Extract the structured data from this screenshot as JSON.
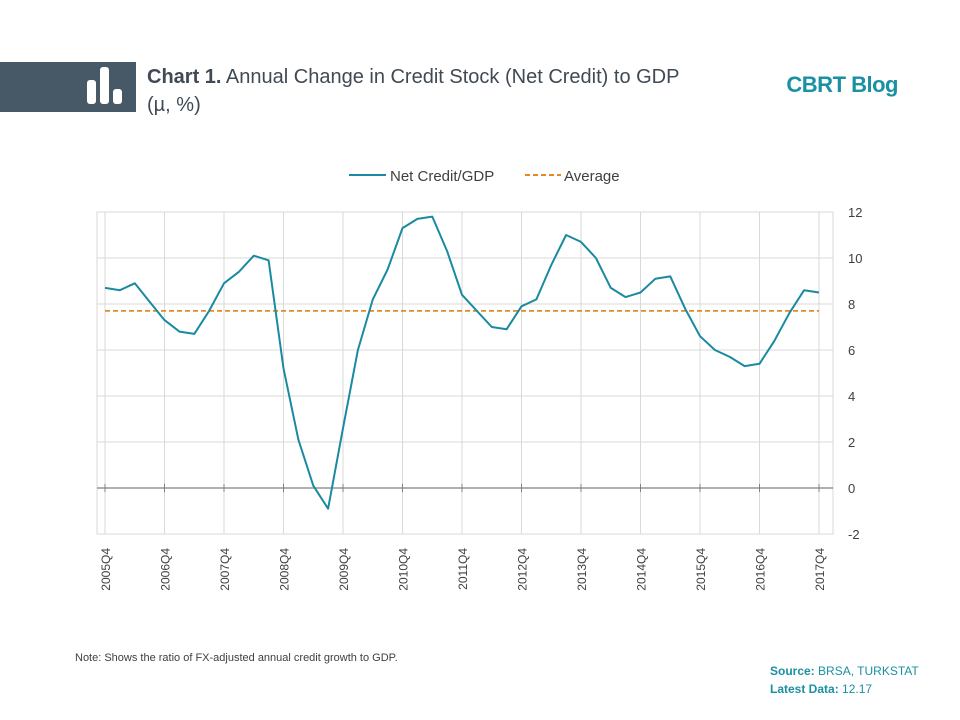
{
  "header": {
    "title_lead": "Chart 1.",
    "title_rest": " Annual Change in Credit Stock (Net Credit) to GDP (µ, %)",
    "brand": "CBRT Blog"
  },
  "footer": {
    "note": "Note: Shows the ratio of FX-adjusted annual credit growth to GDP.",
    "source_label": "Source:",
    "source_value": " BRSA, TURKSTAT",
    "latest_label": "Latest Data:",
    "latest_value": " 12.17"
  },
  "colors": {
    "line": "#1a8aa1",
    "average": "#e08b26",
    "grid": "#d9d9d9",
    "icon_bg": "#475867",
    "accent": "#1a90a3"
  },
  "chart_data": {
    "type": "line",
    "title": "",
    "xlabel": "",
    "ylabel": "",
    "ylim": [
      -2,
      12
    ],
    "yticks": [
      -2,
      0,
      2,
      4,
      6,
      8,
      10,
      12
    ],
    "y_axis_position": "right",
    "grid": true,
    "legend_position": "top-center",
    "categories": [
      "2005Q4",
      "2006Q1",
      "2006Q2",
      "2006Q3",
      "2006Q4",
      "2007Q1",
      "2007Q2",
      "2007Q3",
      "2007Q4",
      "2008Q1",
      "2008Q2",
      "2008Q3",
      "2008Q4",
      "2009Q1",
      "2009Q2",
      "2009Q3",
      "2009Q4",
      "2010Q1",
      "2010Q2",
      "2010Q3",
      "2010Q4",
      "2011Q1",
      "2011Q2",
      "2011Q3",
      "2011Q4",
      "2012Q1",
      "2012Q2",
      "2012Q3",
      "2012Q4",
      "2013Q1",
      "2013Q2",
      "2013Q3",
      "2013Q4",
      "2014Q1",
      "2014Q2",
      "2014Q3",
      "2014Q4",
      "2015Q1",
      "2015Q2",
      "2015Q3",
      "2015Q4",
      "2016Q1",
      "2016Q2",
      "2016Q3",
      "2016Q4",
      "2017Q1",
      "2017Q2",
      "2017Q3",
      "2017Q4"
    ],
    "tick_labels": [
      "2005Q4",
      "2006Q4",
      "2007Q4",
      "2008Q4",
      "2009Q4",
      "2010Q4",
      "2011Q4",
      "2012Q4",
      "2013Q4",
      "2014Q4",
      "2015Q4",
      "2016Q4",
      "2017Q4"
    ],
    "series": [
      {
        "name": "Net Credit/GDP",
        "style": "solid",
        "values": [
          8.7,
          8.6,
          8.9,
          8.1,
          7.3,
          6.8,
          6.7,
          7.7,
          8.9,
          9.4,
          10.1,
          9.9,
          5.2,
          2.1,
          0.1,
          -0.9,
          2.6,
          6.0,
          8.2,
          9.5,
          11.3,
          11.7,
          11.8,
          10.3,
          8.4,
          7.7,
          7.0,
          6.9,
          7.9,
          8.2,
          9.7,
          11.0,
          10.7,
          10.0,
          8.7,
          8.3,
          8.5,
          9.1,
          9.2,
          7.8,
          6.6,
          6.0,
          5.7,
          5.3,
          5.4,
          6.4,
          7.6,
          8.6,
          8.5
        ]
      },
      {
        "name": "Average",
        "style": "dashed",
        "value": 7.7
      }
    ]
  }
}
